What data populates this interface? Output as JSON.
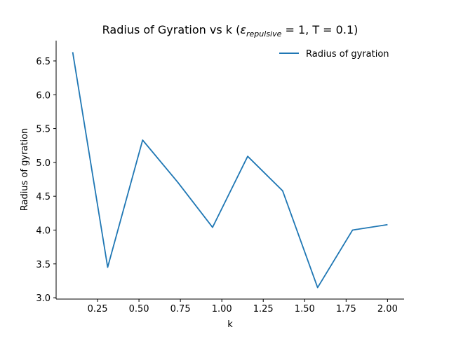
{
  "chart_data": {
    "type": "line",
    "title_main": "Radius of Gyration vs k (",
    "title_epsilon": "ε",
    "title_subscript": "repulsive",
    "title_rest": " = 1, T = 0.1)",
    "xlabel": "k",
    "ylabel": "Radius of gyration",
    "xlim": [
      0.0,
      2.1
    ],
    "ylim": [
      2.98,
      6.8
    ],
    "xticks": [
      0.25,
      0.5,
      0.75,
      1.0,
      1.25,
      1.5,
      1.75,
      2.0
    ],
    "xtick_labels": [
      "0.25",
      "0.50",
      "0.75",
      "1.00",
      "1.25",
      "1.50",
      "1.75",
      "2.00"
    ],
    "yticks": [
      3.0,
      3.5,
      4.0,
      4.5,
      5.0,
      5.5,
      6.0,
      6.5
    ],
    "ytick_labels": [
      "3.0",
      "3.5",
      "4.0",
      "4.5",
      "5.0",
      "5.5",
      "6.0",
      "6.5"
    ],
    "grid": false,
    "legend_position": "top-right",
    "series": [
      {
        "name": "Radius of gyration",
        "color": "#1f77b4",
        "x": [
          0.1,
          0.311,
          0.522,
          0.733,
          0.944,
          1.156,
          1.367,
          1.578,
          1.789,
          2.0
        ],
        "y": [
          6.63,
          3.45,
          5.33,
          4.71,
          4.04,
          5.09,
          4.58,
          3.15,
          4.0,
          4.08
        ]
      }
    ]
  }
}
